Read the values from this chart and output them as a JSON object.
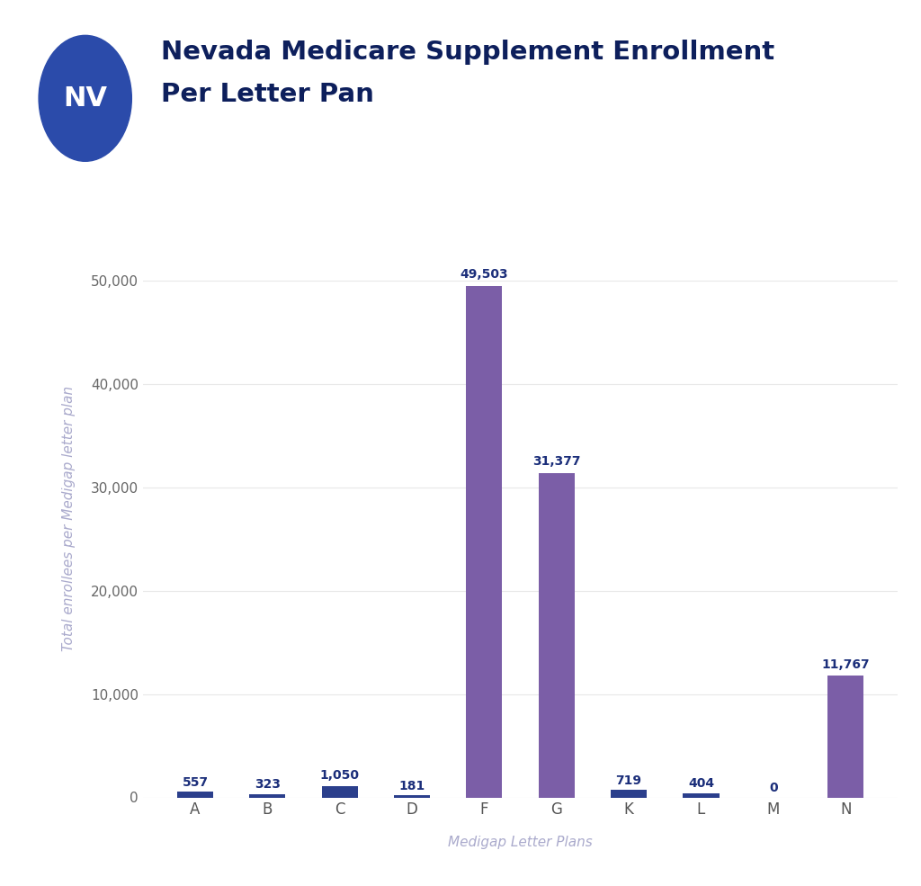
{
  "title_line1": "Nevada Medicare Supplement Enrollment",
  "title_line2": "Per Letter Pan",
  "nv_circle_color": "#2B4BAA",
  "nv_text_color": "#FFFFFF",
  "title_color": "#0D1F5C",
  "categories": [
    "A",
    "B",
    "C",
    "D",
    "F",
    "G",
    "K",
    "L",
    "M",
    "N"
  ],
  "values": [
    557,
    323,
    1050,
    181,
    49503,
    31377,
    719,
    404,
    0,
    11767
  ],
  "bar_color_small": "#2B3F8C",
  "bar_color_large": "#7B5EA7",
  "large_threshold": 5000,
  "ylabel": "Total enrollees per Medigap letter plan",
  "ylabel_color": "#AAAACC",
  "xlabel": "Medigap Letter Plans",
  "xlabel_color": "#AAAACC",
  "ylim": [
    0,
    54000
  ],
  "yticks": [
    0,
    10000,
    20000,
    30000,
    40000,
    50000
  ],
  "background_color": "#FFFFFF",
  "grid_color": "#E8E8E8",
  "annotation_color": "#1B2E7A",
  "tick_color": "#555555",
  "ytick_color": "#666666",
  "axis_label_fontsize": 11,
  "tick_fontsize": 11,
  "annotation_fontsize": 10,
  "title_fontsize": 21,
  "title_fontsize2": 21,
  "nv_fontsize": 22,
  "bar_width": 0.5
}
